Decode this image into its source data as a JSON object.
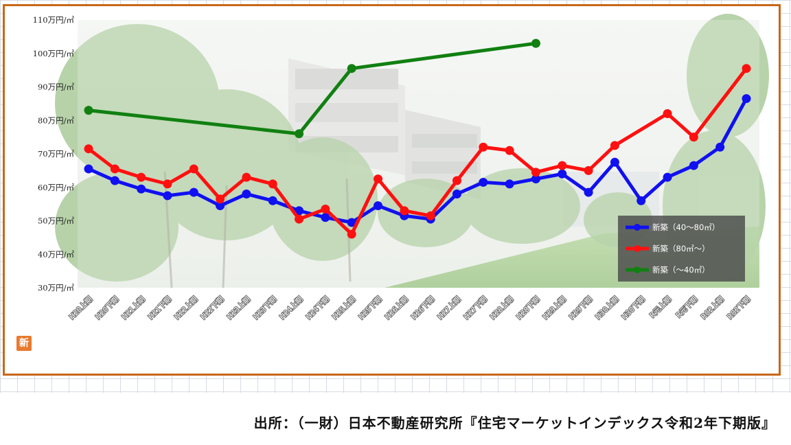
{
  "chart_data": {
    "type": "line",
    "title": "",
    "xlabel": "",
    "ylabel": "",
    "ylim": [
      30,
      110
    ],
    "y_ticks": [
      "30万円/㎡",
      "40万円/㎡",
      "50万円/㎡",
      "60万円/㎡",
      "70万円/㎡",
      "80万円/㎡",
      "90万円/㎡",
      "100万円/㎡",
      "110万円/㎡"
    ],
    "categories": [
      "H20上期",
      "H20下期",
      "H21上期",
      "H21下期",
      "H22上期",
      "H22下期",
      "H23上期",
      "H23下期",
      "H24上期",
      "H24下期",
      "H25上期",
      "H25下期",
      "H26上期",
      "H26下期",
      "H27上期",
      "H27下期",
      "H28上期",
      "H28下期",
      "H29上期",
      "H29下期",
      "H30上期",
      "H30下期",
      "R元上期",
      "R元下期",
      "R02上期",
      "R02下期"
    ],
    "legend_position": "bottom-right",
    "grid": false,
    "series": [
      {
        "name": "新築（40～80㎡）",
        "color": "#1010f0",
        "values": [
          65.5,
          62,
          59.5,
          57.5,
          58.5,
          54.5,
          58,
          56,
          53,
          51,
          49.5,
          54.5,
          51.5,
          50.5,
          58,
          61.5,
          61,
          62.5,
          64,
          58.5,
          67.5,
          56,
          63,
          66.5,
          72,
          86.5
        ]
      },
      {
        "name": "新築（80㎡～）",
        "color": "#ff1010",
        "values": [
          71.5,
          65.5,
          63,
          61,
          65.5,
          56.5,
          63,
          61,
          50.5,
          53.5,
          46,
          62.5,
          53,
          51.5,
          62,
          72,
          71,
          64.5,
          66.5,
          65,
          72.5,
          null,
          82,
          75,
          null,
          95.5
        ]
      },
      {
        "name": "新築（～40㎡）",
        "color": "#118011",
        "points": [
          [
            0,
            83
          ],
          [
            8,
            76
          ],
          [
            10,
            95.5
          ],
          [
            17,
            103
          ]
        ]
      }
    ]
  },
  "source": {
    "text": "出所：（一財）日本不動産研究所『住宅マーケットインデックス令和2年下期版』"
  },
  "brand": {
    "mark": "新"
  }
}
